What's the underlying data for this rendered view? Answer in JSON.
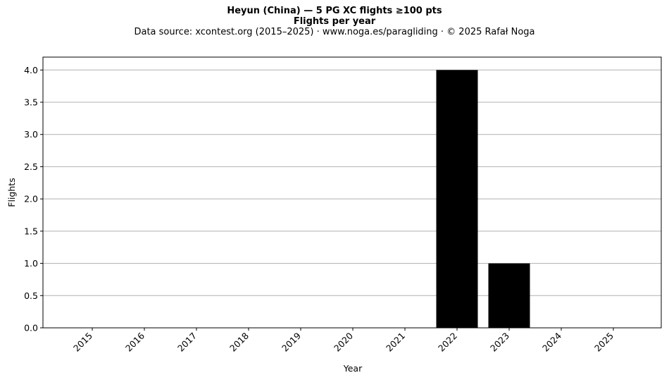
{
  "chart_data": {
    "type": "bar",
    "title": "Heyun (China)  —  5 PG XC flights ≥100 pts",
    "subtitle": "Flights per year",
    "caption": "Data source: xcontest.org (2015–2025)  ·  www.noga.es/paragliding  ·  © 2025 Rafał Noga",
    "xlabel": "Year",
    "ylabel": "Flights",
    "categories": [
      "2015",
      "2016",
      "2017",
      "2018",
      "2019",
      "2020",
      "2021",
      "2022",
      "2023",
      "2024",
      "2025"
    ],
    "values": [
      0,
      0,
      0,
      0,
      0,
      0,
      0,
      4,
      1,
      0,
      0
    ],
    "ylim": [
      0,
      4.2
    ],
    "yticks": [
      "0.0",
      "0.5",
      "1.0",
      "1.5",
      "2.0",
      "2.5",
      "3.0",
      "3.5",
      "4.0"
    ],
    "grid": "y",
    "bar_color": "#000000",
    "grid_color": "#b0b0b0"
  }
}
